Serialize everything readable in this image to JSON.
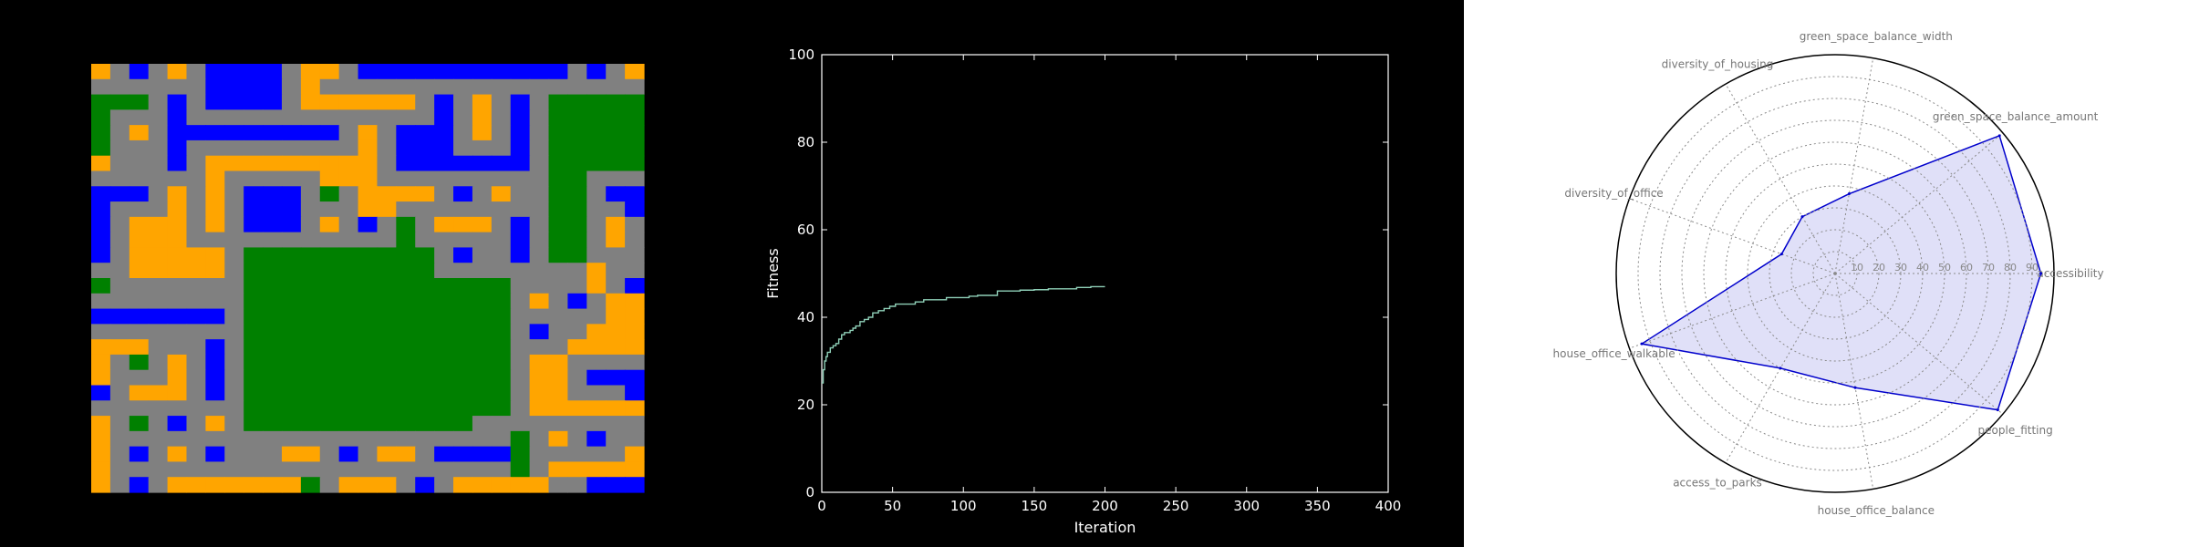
{
  "grid_map": {
    "legend_colors": {
      "Y": "#ffa500",
      "B": "#0000ff",
      "G": "#008000",
      "S": "#808080"
    },
    "cells": [
      "YSBSYSBBBBSYYSBBBBBBBBBBBSBSY",
      "SSSSSSBBBBSYSSSSSSSSSSSSSSSSS",
      "GGGSBSBBBBSYYYYYYSBSYSBSGGGGG",
      "GSSSBSSSSSSSSSSSSSBSYSBSGGGGG",
      "GSYSBBBBBBBBBSYSBBBSYSBSGGGGG",
      "GSSSBSSSSSSSSSYSBBBSSSBSGGGGG",
      "YSSSBSYYYYYYYYYSBBBBBBBSGGGGG",
      "SSSSSSYSSSSSYYYSSSSSSSSSGGSSS",
      "BBBSYSYSBBBSGSYYYYSBSYSSGGSBB",
      "BSSSYSYSBBBSSSYYSSSSSSSSGGSSB",
      "BSYYYSYSBBBSYSBSGSYYYSBSGGSYS",
      "BSYYYSSSSSSSSSSSGSSSSSBSGGSYS",
      "BSYYYYYSGGGGGGGGGGSBSSBSGGSSS",
      "SSYYYYYSGGGGGGGGGGSSSSSSSSYSS",
      "GSSSSSSSGGGGGGGGGGGGGGSSSSYSB",
      "SSSSSSSSGGGGGGGGGGGGGGSYSBSYY",
      "BBBBBBBSGGGGGGGGGGGGGGSSSSSYY",
      "SSSSSSSSGGGGGGGGGGGGGGSBSSYYY",
      "YYYSSSBSGGGGGGGGGGGGGGSSSYYYY",
      "YSGSYSBSGGGGGGGGGGGGGGSYYSSSS",
      "YSSSYSBSGGGGGGGGGGGGGGSYYSBBB",
      "BSYYYSBSGGGGGGGGGGGGGGSYYSSSB",
      "SSSSSSSSGGGGGGGGGGGGGGSYYYYYY",
      "YSGSBSYSGGGGGGGGGGGGSSSSSSSSS",
      "YSSSSSSSSSSSSSSSSSSSSSGSYSBSS",
      "YSBSYSBSSSYYSBSYYSBBBBGSSSSSY",
      "YSSSSSSSSSSSSSSSSSSSSSGSYYYYY",
      "YSBSYYYYYYYGSYYYSBSYYYYYSSBBB"
    ]
  },
  "chart_data": [
    {
      "type": "line",
      "title": "",
      "xlabel": "Iteration",
      "ylabel": "Fitness",
      "xlim": [
        0,
        400
      ],
      "ylim": [
        0,
        100
      ],
      "xticks": [
        "0",
        "50",
        "100",
        "150",
        "200",
        "250",
        "300",
        "350",
        "400"
      ],
      "yticks": [
        "0",
        "20",
        "40",
        "60",
        "80",
        "100"
      ],
      "line_color": "#8fd0b8",
      "series": [
        {
          "x": [
            0,
            1,
            2,
            3,
            4,
            6,
            8,
            10,
            12,
            14,
            16,
            18,
            20,
            22,
            24,
            27,
            30,
            33,
            36,
            40,
            44,
            48,
            52,
            56,
            60,
            66,
            72,
            80,
            88,
            96,
            104,
            110,
            118,
            124,
            130,
            140,
            150,
            160,
            170,
            180,
            190,
            200
          ],
          "y": [
            25,
            28,
            30,
            31,
            32,
            33,
            33.5,
            34,
            35,
            36,
            36.5,
            36.5,
            37,
            37.5,
            38,
            39,
            39.5,
            40,
            41,
            41.5,
            42,
            42.5,
            43,
            43,
            43,
            43.5,
            44,
            44,
            44.5,
            44.5,
            44.8,
            45,
            45,
            46,
            46,
            46.2,
            46.3,
            46.5,
            46.5,
            46.8,
            47,
            47
          ]
        }
      ]
    },
    {
      "type": "radar",
      "title": "",
      "rlim": [
        0,
        100
      ],
      "rticks": [
        "10",
        "20",
        "30",
        "40",
        "50",
        "60",
        "70",
        "80",
        "90"
      ],
      "categories": [
        "accessibility",
        "green_space_balance_amount",
        "green_space_balance_width",
        "diversity_of_housing",
        "diversity_of_office",
        "house_office_walkable",
        "access_to_parks",
        "house_office_balance",
        "people_fitting"
      ],
      "values": [
        94,
        98,
        37,
        30,
        26,
        94,
        50,
        53,
        97
      ],
      "line_color": "#0000cc",
      "fill_color": "#e0e0f8"
    }
  ]
}
